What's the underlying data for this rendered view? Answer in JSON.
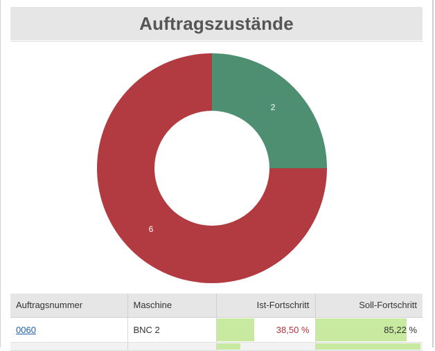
{
  "title": "Auftragszustände",
  "chart_data": {
    "type": "pie",
    "variant": "donut",
    "categories": [
      "grün",
      "rot"
    ],
    "values": [
      2,
      6
    ],
    "colors": [
      "#4e8f72",
      "#b23b42"
    ],
    "data_labels": [
      "2",
      "6"
    ]
  },
  "table": {
    "headers": [
      "Auftragsnummer",
      "Maschine",
      "Ist-Fortschritt",
      "Soll-Fortschritt"
    ],
    "rows": [
      {
        "order": "0060",
        "machine": "BNC 2",
        "ist": "38,50 %",
        "ist_value": 38.5,
        "soll": "85,22 %",
        "soll_value": 85.22
      },
      {
        "order": "",
        "machine": "",
        "ist": "",
        "ist_value": 24,
        "soll": "",
        "soll_value": 98
      }
    ]
  },
  "colors": {
    "bar": "#c7eaa0",
    "ist_text": "#b0323a",
    "link": "#1f5fa8",
    "header_bg": "#e6e6e6"
  }
}
